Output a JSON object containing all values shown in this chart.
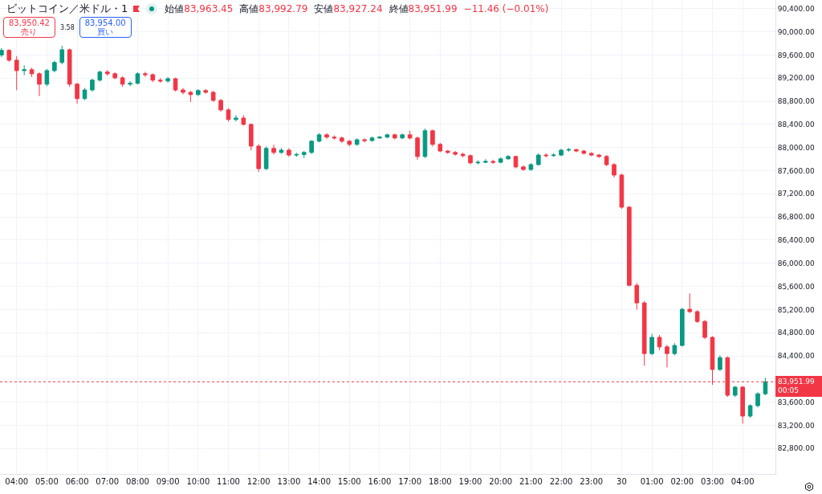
{
  "chart_data": {
    "type": "candlestick",
    "title": "ビットコイン／米ドル・1",
    "x": [
      "--03-29T03:30",
      "--03-29T03:45",
      "--03-29T04:00",
      "--03-29T04:15",
      "--03-29T04:30",
      "--03-29T04:45",
      "--03-29T05:00",
      "--03-29T05:15",
      "--03-29T05:30",
      "--03-29T05:45",
      "--03-29T06:00",
      "--03-29T06:15",
      "--03-29T06:30",
      "--03-29T06:45",
      "--03-29T07:00",
      "--03-29T07:15",
      "--03-29T07:30",
      "--03-29T07:45",
      "--03-29T08:00",
      "--03-29T08:15",
      "--03-29T08:30",
      "--03-29T08:45",
      "--03-29T09:00",
      "--03-29T09:15",
      "--03-29T09:30",
      "--03-29T09:45",
      "--03-29T10:00",
      "--03-29T10:15",
      "--03-29T10:30",
      "--03-29T10:45",
      "--03-29T11:00",
      "--03-29T11:15",
      "--03-29T11:30",
      "--03-29T11:45",
      "--03-29T12:00",
      "--03-29T12:15",
      "--03-29T12:30",
      "--03-29T12:45",
      "--03-29T13:00",
      "--03-29T13:15",
      "--03-29T13:30",
      "--03-29T13:45",
      "--03-29T14:00",
      "--03-29T14:15",
      "--03-29T14:30",
      "--03-29T14:45",
      "--03-29T15:00",
      "--03-29T15:15",
      "--03-29T15:30",
      "--03-29T15:45",
      "--03-29T16:00",
      "--03-29T16:15",
      "--03-29T16:30",
      "--03-29T16:45",
      "--03-29T17:00",
      "--03-29T17:15",
      "--03-29T17:30",
      "--03-29T17:45",
      "--03-29T18:00",
      "--03-29T18:15",
      "--03-29T18:30",
      "--03-29T18:45",
      "--03-29T19:00",
      "--03-29T19:15",
      "--03-29T19:30",
      "--03-29T19:45",
      "--03-29T20:00",
      "--03-29T20:15",
      "--03-29T20:30",
      "--03-29T20:45",
      "--03-29T21:00",
      "--03-29T21:15",
      "--03-29T21:30",
      "--03-29T21:45",
      "--03-29T22:00",
      "--03-29T22:15",
      "--03-29T22:30",
      "--03-29T22:45",
      "--03-29T23:00",
      "--03-29T23:15",
      "--03-29T23:30",
      "--03-29T23:45",
      "--03-30T00:00",
      "--03-30T00:15",
      "--03-30T00:30",
      "--03-30T00:45",
      "--03-30T01:00",
      "--03-30T01:15",
      "--03-30T01:30",
      "--03-30T01:45",
      "--03-30T02:00",
      "--03-30T02:15",
      "--03-30T02:30",
      "--03-30T02:45",
      "--03-30T03:00",
      "--03-30T03:15",
      "--03-30T03:30",
      "--03-30T03:45",
      "--03-30T04:00",
      "--03-30T04:15",
      "--03-30T04:30",
      "--03-30T04:45"
    ],
    "ohlc": [
      [
        89600,
        89720,
        89560,
        89680
      ],
      [
        89680,
        89700,
        89480,
        89510
      ],
      [
        89510,
        89580,
        88990,
        89330
      ],
      [
        89330,
        89420,
        89250,
        89345
      ],
      [
        89345,
        89380,
        89220,
        89275
      ],
      [
        89275,
        89300,
        88890,
        89095
      ],
      [
        89095,
        89360,
        89060,
        89330
      ],
      [
        89330,
        89500,
        89300,
        89470
      ],
      [
        89470,
        89760,
        89440,
        89690
      ],
      [
        89690,
        89710,
        89050,
        89095
      ],
      [
        89095,
        89120,
        88760,
        88845
      ],
      [
        88845,
        89030,
        88820,
        88995
      ],
      [
        88995,
        89190,
        88970,
        89165
      ],
      [
        89165,
        89330,
        89140,
        89305
      ],
      [
        89305,
        89340,
        89240,
        89275
      ],
      [
        89275,
        89300,
        89180,
        89205
      ],
      [
        89205,
        89230,
        89050,
        89095
      ],
      [
        89095,
        89150,
        89060,
        89110
      ],
      [
        89110,
        89300,
        89090,
        89275
      ],
      [
        89275,
        89310,
        89220,
        89260
      ],
      [
        89260,
        89280,
        89130,
        89165
      ],
      [
        89165,
        89200,
        89120,
        89150
      ],
      [
        89150,
        89220,
        89120,
        89190
      ],
      [
        89190,
        89210,
        88970,
        88995
      ],
      [
        88995,
        89030,
        88920,
        88955
      ],
      [
        88955,
        88980,
        88790,
        88915
      ],
      [
        88915,
        89010,
        88890,
        88985
      ],
      [
        88985,
        89010,
        88930,
        88955
      ],
      [
        88955,
        88980,
        88790,
        88815
      ],
      [
        88815,
        88840,
        88620,
        88650
      ],
      [
        88650,
        88680,
        88450,
        88485
      ],
      [
        88485,
        88560,
        88450,
        88510
      ],
      [
        88510,
        88560,
        88380,
        88400
      ],
      [
        88400,
        88420,
        87950,
        88025
      ],
      [
        88025,
        88060,
        87580,
        87635
      ],
      [
        87635,
        88020,
        87610,
        87985
      ],
      [
        87985,
        88050,
        87880,
        87915
      ],
      [
        87915,
        87990,
        87890,
        87955
      ],
      [
        87955,
        87990,
        87840,
        87870
      ],
      [
        87870,
        87910,
        87840,
        87880
      ],
      [
        87880,
        87940,
        87820,
        87915
      ],
      [
        87915,
        88130,
        87890,
        88110
      ],
      [
        88110,
        88250,
        88090,
        88220
      ],
      [
        88220,
        88250,
        88150,
        88180
      ],
      [
        88180,
        88210,
        88140,
        88165
      ],
      [
        88165,
        88190,
        88080,
        88110
      ],
      [
        88110,
        88130,
        88020,
        88055
      ],
      [
        88055,
        88160,
        88030,
        88135
      ],
      [
        88135,
        88160,
        88090,
        88120
      ],
      [
        88120,
        88190,
        88100,
        88165
      ],
      [
        88165,
        88200,
        88150,
        88180
      ],
      [
        88180,
        88240,
        88160,
        88220
      ],
      [
        88220,
        88240,
        88140,
        88165
      ],
      [
        88165,
        88240,
        88150,
        88220
      ],
      [
        88220,
        88290,
        88140,
        88165
      ],
      [
        88165,
        88190,
        87790,
        87845
      ],
      [
        87845,
        88330,
        87820,
        88290
      ],
      [
        88290,
        88310,
        88020,
        88055
      ],
      [
        88055,
        88080,
        87920,
        87940
      ],
      [
        87940,
        87960,
        87890,
        87915
      ],
      [
        87915,
        87940,
        87860,
        87885
      ],
      [
        87885,
        87910,
        87830,
        87860
      ],
      [
        87860,
        87880,
        87710,
        87735
      ],
      [
        87735,
        87780,
        87710,
        87745
      ],
      [
        87745,
        87800,
        87730,
        87760
      ],
      [
        87760,
        87790,
        87720,
        87745
      ],
      [
        87745,
        87830,
        87730,
        87805
      ],
      [
        87805,
        87870,
        87790,
        87845
      ],
      [
        87845,
        87860,
        87640,
        87665
      ],
      [
        87665,
        87690,
        87600,
        87620
      ],
      [
        87620,
        87730,
        87600,
        87705
      ],
      [
        87705,
        87900,
        87690,
        87870
      ],
      [
        87870,
        87900,
        87830,
        87860
      ],
      [
        87860,
        87900,
        87840,
        87870
      ],
      [
        87870,
        87980,
        87850,
        87955
      ],
      [
        87955,
        87990,
        87930,
        87965
      ],
      [
        87965,
        87980,
        87920,
        87940
      ],
      [
        87940,
        87960,
        87880,
        87900
      ],
      [
        87900,
        87920,
        87850,
        87870
      ],
      [
        87870,
        87890,
        87820,
        87845
      ],
      [
        87845,
        87870,
        87680,
        87705
      ],
      [
        87705,
        87730,
        87480,
        87525
      ],
      [
        87525,
        87550,
        86940,
        86970
      ],
      [
        86970,
        86990,
        85600,
        85620
      ],
      [
        85620,
        85660,
        85200,
        85315
      ],
      [
        85315,
        85350,
        84230,
        84440
      ],
      [
        84440,
        84780,
        84410,
        84720
      ],
      [
        84720,
        84760,
        84500,
        84555
      ],
      [
        84555,
        84590,
        84200,
        84440
      ],
      [
        84440,
        84620,
        84410,
        84580
      ],
      [
        84580,
        85230,
        84560,
        85205
      ],
      [
        85205,
        85480,
        85140,
        85165
      ],
      [
        85165,
        85190,
        84970,
        84995
      ],
      [
        84995,
        85020,
        84690,
        84720
      ],
      [
        84720,
        84740,
        83900,
        84165
      ],
      [
        84165,
        84410,
        84140,
        84370
      ],
      [
        84370,
        84390,
        83690,
        83720
      ],
      [
        83720,
        83880,
        83690,
        83860
      ],
      [
        83860,
        83880,
        83230,
        83360
      ],
      [
        83360,
        83560,
        83330,
        83540
      ],
      [
        83540,
        83770,
        83510,
        83745
      ],
      [
        83745,
        84020,
        83720,
        83951.99
      ]
    ],
    "colors": [
      "#089981",
      "#f23645",
      "#f23645",
      "#089981",
      "#f23645",
      "#f23645",
      "#089981",
      "#089981",
      "#089981",
      "#f23645",
      "#f23645",
      "#089981",
      "#089981",
      "#089981",
      "#f23645",
      "#f23645",
      "#f23645",
      "#089981",
      "#089981",
      "#f23645",
      "#f23645",
      "#f23645",
      "#089981",
      "#f23645",
      "#f23645",
      "#f23645",
      "#089981",
      "#f23645",
      "#f23645",
      "#f23645",
      "#f23645",
      "#089981",
      "#f23645",
      "#f23645",
      "#f23645",
      "#089981",
      "#f23645",
      "#089981",
      "#f23645",
      "#089981",
      "#089981",
      "#089981",
      "#089981",
      "#f23645",
      "#f23645",
      "#f23645",
      "#f23645",
      "#089981",
      "#f23645",
      "#089981",
      "#089981",
      "#089981",
      "#f23645",
      "#089981",
      "#f23645",
      "#f23645",
      "#089981",
      "#f23645",
      "#f23645",
      "#f23645",
      "#f23645",
      "#f23645",
      "#f23645",
      "#089981",
      "#089981",
      "#f23645",
      "#089981",
      "#089981",
      "#f23645",
      "#f23645",
      "#089981",
      "#089981",
      "#f23645",
      "#089981",
      "#089981",
      "#089981",
      "#f23645",
      "#f23645",
      "#f23645",
      "#f23645",
      "#f23645",
      "#f23645",
      "#f23645",
      "#f23645",
      "#f23645",
      "#f23645",
      "#089981",
      "#f23645",
      "#f23645",
      "#089981",
      "#089981",
      "#f23645",
      "#f23645",
      "#f23645",
      "#f23645",
      "#089981",
      "#f23645",
      "#089981",
      "#f23645",
      "#089981",
      "#089981",
      "#089981"
    ],
    "xlim": [
      "--03-29T03:27",
      "--03-30T05:05"
    ],
    "xticks": [
      {
        "value": "--03-29T04:00",
        "label": "04:00"
      },
      {
        "value": "--03-29T05:00",
        "label": "05:00"
      },
      {
        "value": "--03-29T06:00",
        "label": "06:00"
      },
      {
        "value": "--03-29T07:00",
        "label": "07:00"
      },
      {
        "value": "--03-29T08:00",
        "label": "08:00"
      },
      {
        "value": "--03-29T09:00",
        "label": "09:00"
      },
      {
        "value": "--03-29T10:00",
        "label": "10:00"
      },
      {
        "value": "--03-29T11:00",
        "label": "11:00"
      },
      {
        "value": "--03-29T12:00",
        "label": "12:00"
      },
      {
        "value": "--03-29T13:00",
        "label": "13:00"
      },
      {
        "value": "--03-29T14:00",
        "label": "14:00"
      },
      {
        "value": "--03-29T15:00",
        "label": "15:00"
      },
      {
        "value": "--03-29T16:00",
        "label": "16:00"
      },
      {
        "value": "--03-29T17:00",
        "label": "17:00"
      },
      {
        "value": "--03-29T18:00",
        "label": "18:00"
      },
      {
        "value": "--03-29T19:00",
        "label": "19:00"
      },
      {
        "value": "--03-29T20:00",
        "label": "20:00"
      },
      {
        "value": "--03-29T21:00",
        "label": "21:00"
      },
      {
        "value": "--03-29T22:00",
        "label": "22:00"
      },
      {
        "value": "--03-29T23:00",
        "label": "23:00"
      },
      {
        "value": "--03-30T00:00",
        "label": "30"
      },
      {
        "value": "--03-30T01:00",
        "label": "01:00"
      },
      {
        "value": "--03-30T02:00",
        "label": "02:00"
      },
      {
        "value": "--03-30T03:00",
        "label": "03:00"
      },
      {
        "value": "--03-30T04:00",
        "label": "04:00"
      }
    ],
    "ylim": [
      82360,
      90550
    ],
    "yticks": [
      {
        "value": 82800,
        "label": "82,800.00"
      },
      {
        "value": 83200,
        "label": "83,200.00"
      },
      {
        "value": 83600,
        "label": "83,600.00"
      },
      {
        "value": 84000,
        "label": null
      },
      {
        "value": 84400,
        "label": "84,400.00"
      },
      {
        "value": 84800,
        "label": "84,800.00"
      },
      {
        "value": 85200,
        "label": "85,200.00"
      },
      {
        "value": 85600,
        "label": "85,600.00"
      },
      {
        "value": 86000,
        "label": "86,000.00"
      },
      {
        "value": 86400,
        "label": "86,400.00"
      },
      {
        "value": 86800,
        "label": "86,800.00"
      },
      {
        "value": 87200,
        "label": "87,200.00"
      },
      {
        "value": 87600,
        "label": "87,600.00"
      },
      {
        "value": 88000,
        "label": "88,000.00"
      },
      {
        "value": 88400,
        "label": "88,400.00"
      },
      {
        "value": 88800,
        "label": "88,800.00"
      },
      {
        "value": 89200,
        "label": "89,200.00"
      },
      {
        "value": 89600,
        "label": "89,600.00"
      },
      {
        "value": 90000,
        "label": "90,000.00"
      },
      {
        "value": 90400,
        "label": "90,400.00"
      }
    ],
    "grid": true,
    "ref_lines": [
      {
        "axis": "y",
        "value": 83951.99,
        "label": "83,951.99",
        "color": "#f23645",
        "line_style": "dotted"
      }
    ],
    "annotations": [
      "始値",
      "83,963.45",
      "高値",
      "83,992.79",
      "安値",
      "83,927.24",
      "終値",
      "83,951.99",
      "−11.46 (−0.01%)",
      "83,950.42",
      "売り",
      "3.58",
      "83,954.00",
      "買い",
      "00:05"
    ]
  }
}
